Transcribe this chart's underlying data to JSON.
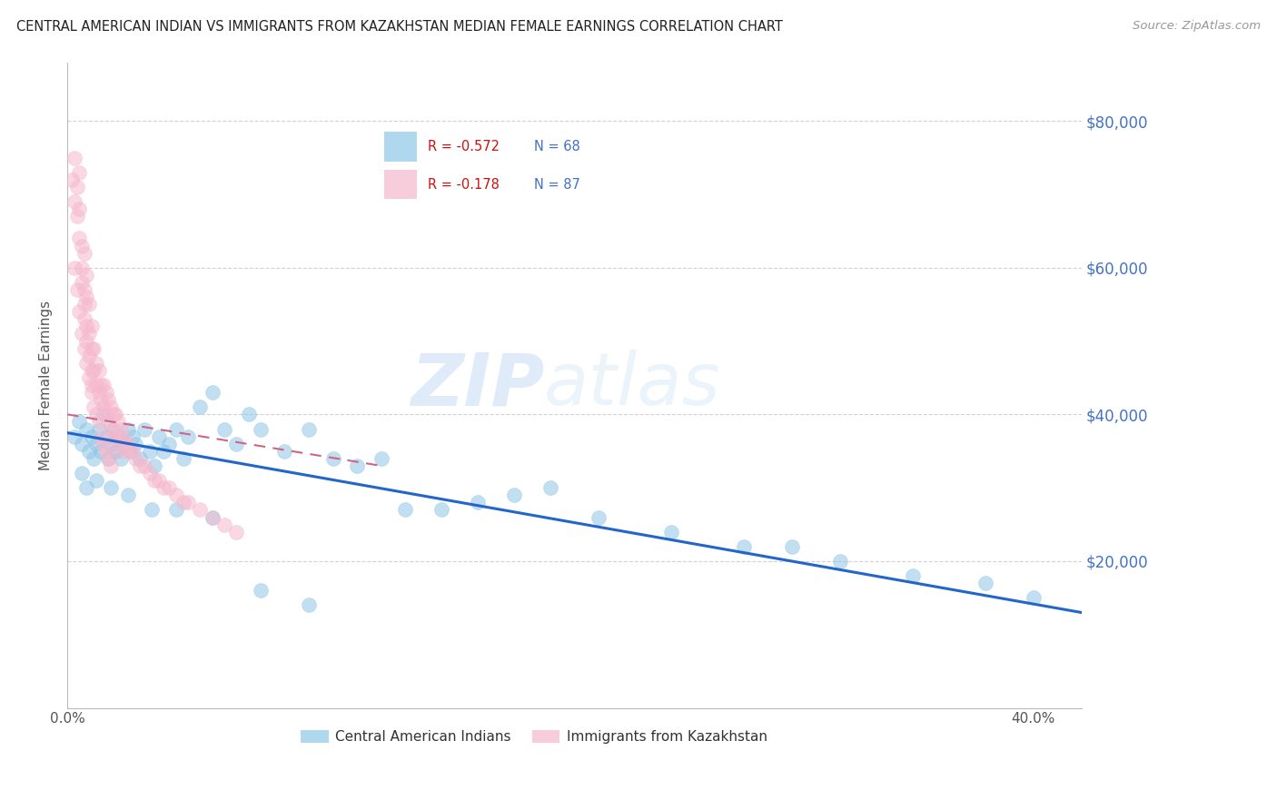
{
  "title": "CENTRAL AMERICAN INDIAN VS IMMIGRANTS FROM KAZAKHSTAN MEDIAN FEMALE EARNINGS CORRELATION CHART",
  "source": "Source: ZipAtlas.com",
  "ylabel": "Median Female Earnings",
  "watermark_zip": "ZIP",
  "watermark_atlas": "atlas",
  "xlim": [
    0.0,
    0.42
  ],
  "ylim": [
    0,
    88000
  ],
  "yticks": [
    0,
    20000,
    40000,
    60000,
    80000
  ],
  "ytick_labels": [
    "",
    "$20,000",
    "$40,000",
    "$60,000",
    "$80,000"
  ],
  "xticks": [
    0.0,
    0.05,
    0.1,
    0.15,
    0.2,
    0.25,
    0.3,
    0.35,
    0.4
  ],
  "xtick_labels_show": [
    "0.0%",
    "40.0%"
  ],
  "blue_color": "#8ec6e6",
  "pink_color": "#f5b8cc",
  "blue_fill": "#8ec6e6",
  "pink_fill": "#f5b8cc",
  "blue_line_color": "#2266cc",
  "pink_line_color": "#cc6688",
  "legend_r_blue": "R = -0.572",
  "legend_n_blue": "N = 68",
  "legend_r_pink": "R = -0.178",
  "legend_n_pink": "N = 87",
  "label_blue": "Central American Indians",
  "label_pink": "Immigrants from Kazakhstan",
  "axis_color": "#4472c4",
  "title_color": "#222222",
  "blue_scatter_x": [
    0.003,
    0.005,
    0.006,
    0.008,
    0.009,
    0.01,
    0.011,
    0.012,
    0.013,
    0.014,
    0.015,
    0.016,
    0.017,
    0.018,
    0.019,
    0.02,
    0.021,
    0.022,
    0.023,
    0.025,
    0.026,
    0.027,
    0.028,
    0.03,
    0.032,
    0.034,
    0.036,
    0.038,
    0.04,
    0.042,
    0.045,
    0.048,
    0.05,
    0.055,
    0.06,
    0.065,
    0.07,
    0.075,
    0.08,
    0.09,
    0.1,
    0.11,
    0.12,
    0.13,
    0.14,
    0.155,
    0.17,
    0.185,
    0.2,
    0.22,
    0.25,
    0.28,
    0.3,
    0.32,
    0.35,
    0.38,
    0.4,
    0.006,
    0.008,
    0.012,
    0.018,
    0.025,
    0.035,
    0.045,
    0.06,
    0.08,
    0.1
  ],
  "blue_scatter_y": [
    37000,
    39000,
    36000,
    38000,
    35000,
    37000,
    34000,
    36000,
    38000,
    35000,
    40000,
    37000,
    34000,
    36000,
    38000,
    35000,
    37000,
    34000,
    36000,
    38000,
    35000,
    37000,
    36000,
    34000,
    38000,
    35000,
    33000,
    37000,
    35000,
    36000,
    38000,
    34000,
    37000,
    41000,
    43000,
    38000,
    36000,
    40000,
    38000,
    35000,
    38000,
    34000,
    33000,
    34000,
    27000,
    27000,
    28000,
    29000,
    30000,
    26000,
    24000,
    22000,
    22000,
    20000,
    18000,
    17000,
    15000,
    32000,
    30000,
    31000,
    30000,
    29000,
    27000,
    27000,
    26000,
    16000,
    14000
  ],
  "pink_scatter_x": [
    0.002,
    0.003,
    0.003,
    0.004,
    0.004,
    0.005,
    0.005,
    0.005,
    0.006,
    0.006,
    0.006,
    0.007,
    0.007,
    0.007,
    0.007,
    0.008,
    0.008,
    0.008,
    0.008,
    0.009,
    0.009,
    0.009,
    0.01,
    0.01,
    0.01,
    0.01,
    0.011,
    0.011,
    0.012,
    0.012,
    0.013,
    0.013,
    0.014,
    0.014,
    0.015,
    0.015,
    0.016,
    0.016,
    0.017,
    0.017,
    0.018,
    0.018,
    0.019,
    0.019,
    0.02,
    0.02,
    0.021,
    0.021,
    0.022,
    0.022,
    0.023,
    0.024,
    0.025,
    0.026,
    0.027,
    0.028,
    0.03,
    0.032,
    0.034,
    0.036,
    0.038,
    0.04,
    0.042,
    0.045,
    0.048,
    0.05,
    0.055,
    0.06,
    0.065,
    0.07,
    0.003,
    0.004,
    0.005,
    0.006,
    0.007,
    0.008,
    0.009,
    0.01,
    0.011,
    0.012,
    0.013,
    0.014,
    0.015,
    0.016,
    0.017,
    0.018
  ],
  "pink_scatter_y": [
    72000,
    75000,
    69000,
    71000,
    67000,
    68000,
    64000,
    73000,
    63000,
    60000,
    58000,
    62000,
    57000,
    55000,
    53000,
    59000,
    56000,
    52000,
    50000,
    55000,
    51000,
    48000,
    52000,
    49000,
    46000,
    44000,
    49000,
    46000,
    47000,
    44000,
    46000,
    43000,
    44000,
    42000,
    44000,
    41000,
    43000,
    40000,
    42000,
    39000,
    41000,
    38000,
    40000,
    37000,
    40000,
    37000,
    39000,
    36000,
    38000,
    35000,
    37000,
    36000,
    36000,
    35000,
    35000,
    34000,
    33000,
    33000,
    32000,
    31000,
    31000,
    30000,
    30000,
    29000,
    28000,
    28000,
    27000,
    26000,
    25000,
    24000,
    60000,
    57000,
    54000,
    51000,
    49000,
    47000,
    45000,
    43000,
    41000,
    40000,
    39000,
    37000,
    36000,
    35000,
    34000,
    33000
  ],
  "blue_trend_x": [
    0.0,
    0.42
  ],
  "blue_trend_y": [
    37500,
    13000
  ],
  "pink_trend_x": [
    0.0,
    0.13
  ],
  "pink_trend_y": [
    40000,
    33000
  ]
}
